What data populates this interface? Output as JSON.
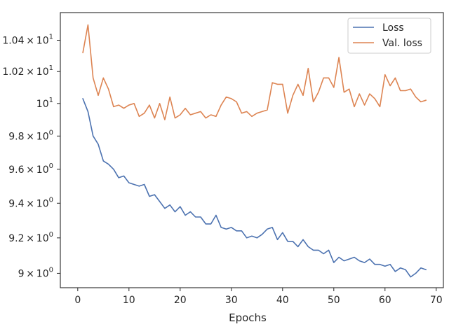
{
  "chart_data": {
    "type": "line",
    "title": "",
    "xlabel": "Epochs",
    "ylabel": "",
    "xlim": [
      -3.4,
      71.4
    ],
    "ylim": [
      8.92,
      10.58
    ],
    "yscale": "log",
    "grid": false,
    "legend_position": "top-right",
    "x_ticks": [
      0,
      10,
      20,
      30,
      40,
      50,
      60,
      70
    ],
    "x_tick_labels": [
      "0",
      "10",
      "20",
      "30",
      "40",
      "50",
      "60",
      "70"
    ],
    "y_ticks": [
      {
        "value": 9.0,
        "mantissa": "9",
        "times": "×",
        "base": "10",
        "exp": "0"
      },
      {
        "value": 9.2,
        "mantissa": "9.2",
        "times": "×",
        "base": "10",
        "exp": "0"
      },
      {
        "value": 9.4,
        "mantissa": "9.4",
        "times": "×",
        "base": "10",
        "exp": "0"
      },
      {
        "value": 9.6,
        "mantissa": "9.6",
        "times": "×",
        "base": "10",
        "exp": "0"
      },
      {
        "value": 9.8,
        "mantissa": "9.8",
        "times": "×",
        "base": "10",
        "exp": "0"
      },
      {
        "value": 10.0,
        "mantissa": "",
        "times": "",
        "base": "10",
        "exp": "1"
      },
      {
        "value": 10.2,
        "mantissa": "1.02",
        "times": "×",
        "base": "10",
        "exp": "1"
      },
      {
        "value": 10.4,
        "mantissa": "1.04",
        "times": "×",
        "base": "10",
        "exp": "1"
      }
    ],
    "x": [
      1,
      2,
      3,
      4,
      5,
      6,
      7,
      8,
      9,
      10,
      11,
      12,
      13,
      14,
      15,
      16,
      17,
      18,
      19,
      20,
      21,
      22,
      23,
      24,
      25,
      26,
      27,
      28,
      29,
      30,
      31,
      32,
      33,
      34,
      35,
      36,
      37,
      38,
      39,
      40,
      41,
      42,
      43,
      44,
      45,
      46,
      47,
      48,
      49,
      50,
      51,
      52,
      53,
      54,
      55,
      56,
      57,
      58,
      59,
      60,
      61,
      62,
      63,
      64,
      65,
      66,
      67,
      68
    ],
    "series": [
      {
        "name": "Loss",
        "color": "#4c72b0",
        "values": [
          10.03,
          9.95,
          9.8,
          9.75,
          9.65,
          9.63,
          9.6,
          9.55,
          9.56,
          9.52,
          9.51,
          9.5,
          9.51,
          9.44,
          9.45,
          9.41,
          9.37,
          9.39,
          9.35,
          9.38,
          9.33,
          9.35,
          9.32,
          9.32,
          9.28,
          9.28,
          9.33,
          9.26,
          9.25,
          9.26,
          9.24,
          9.24,
          9.2,
          9.21,
          9.2,
          9.22,
          9.25,
          9.26,
          9.19,
          9.23,
          9.18,
          9.18,
          9.15,
          9.19,
          9.15,
          9.13,
          9.13,
          9.11,
          9.13,
          9.06,
          9.09,
          9.07,
          9.08,
          9.09,
          9.07,
          9.06,
          9.08,
          9.05,
          9.05,
          9.04,
          9.05,
          9.01,
          9.03,
          9.02,
          8.98,
          9.0,
          9.03,
          9.02
        ]
      },
      {
        "name": "Val. loss",
        "color": "#dd8452",
        "values": [
          10.32,
          10.5,
          10.16,
          10.05,
          10.16,
          10.09,
          9.98,
          9.99,
          9.97,
          9.99,
          10.0,
          9.92,
          9.94,
          9.99,
          9.91,
          10.0,
          9.9,
          10.04,
          9.91,
          9.93,
          9.97,
          9.93,
          9.94,
          9.95,
          9.91,
          9.93,
          9.92,
          9.99,
          10.04,
          10.03,
          10.01,
          9.94,
          9.95,
          9.92,
          9.94,
          9.95,
          9.96,
          10.13,
          10.12,
          10.12,
          9.94,
          10.05,
          10.12,
          10.05,
          10.22,
          10.01,
          10.07,
          10.16,
          10.16,
          10.1,
          10.29,
          10.07,
          10.09,
          9.98,
          10.06,
          9.99,
          10.06,
          10.03,
          9.98,
          10.18,
          10.11,
          10.16,
          10.08,
          10.08,
          10.09,
          10.04,
          10.01,
          10.02
        ]
      }
    ]
  }
}
